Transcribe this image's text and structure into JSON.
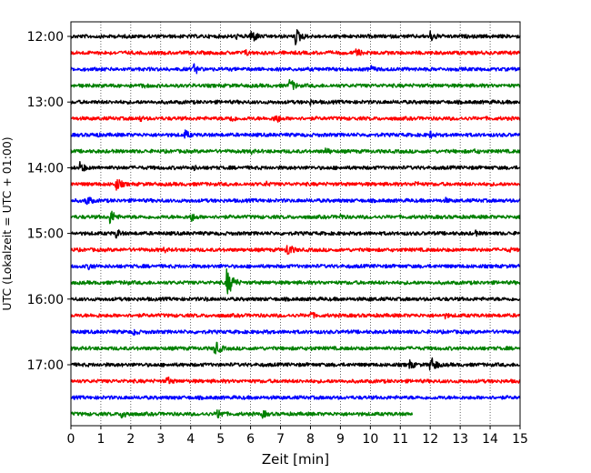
{
  "chart_data": {
    "type": "line",
    "xlabel": "Zeit  [min]",
    "ylabel": "UTC (Lokalzeit = UTC + 01:00)",
    "xlim": [
      0,
      15
    ],
    "x_ticks": [
      "0",
      "1",
      "2",
      "3",
      "4",
      "5",
      "6",
      "7",
      "8",
      "9",
      "10",
      "11",
      "12",
      "13",
      "14",
      "15"
    ],
    "y_ticks": [
      "12:00",
      "13:00",
      "14:00",
      "15:00",
      "16:00",
      "17:00"
    ],
    "grid": "vertical dotted",
    "trace_interval_min": 15,
    "trace_colors": [
      "#000000",
      "#ff0000",
      "#0000ff",
      "#008000"
    ],
    "traces": [
      {
        "start": "12:00",
        "color": "#000000",
        "end_min": 15,
        "events": [
          [
            6.0,
            9
          ],
          [
            7.5,
            10
          ],
          [
            12.0,
            7
          ],
          [
            5.5,
            4
          ]
        ]
      },
      {
        "start": "12:15",
        "color": "#ff0000",
        "end_min": 15,
        "events": [
          [
            5.8,
            5
          ],
          [
            9.5,
            6
          ]
        ]
      },
      {
        "start": "12:30",
        "color": "#0000ff",
        "end_min": 15,
        "events": [
          [
            4.1,
            7
          ],
          [
            10.0,
            5
          ]
        ]
      },
      {
        "start": "12:45",
        "color": "#008000",
        "end_min": 15,
        "events": [
          [
            7.3,
            8
          ],
          [
            2.4,
            4
          ]
        ]
      },
      {
        "start": "13:00",
        "color": "#000000",
        "end_min": 15,
        "events": [
          [
            8.0,
            4
          ],
          [
            14.0,
            3
          ]
        ]
      },
      {
        "start": "13:15",
        "color": "#ff0000",
        "end_min": 15,
        "events": [
          [
            5.3,
            6
          ],
          [
            6.8,
            7
          ],
          [
            2.3,
            4
          ]
        ]
      },
      {
        "start": "13:30",
        "color": "#0000ff",
        "end_min": 15,
        "events": [
          [
            3.8,
            6
          ],
          [
            12.0,
            5
          ],
          [
            0.8,
            4
          ]
        ]
      },
      {
        "start": "13:45",
        "color": "#008000",
        "end_min": 15,
        "events": [
          [
            8.5,
            5
          ],
          [
            13.5,
            4
          ],
          [
            6.0,
            4
          ]
        ]
      },
      {
        "start": "14:00",
        "color": "#000000",
        "end_min": 15,
        "events": [
          [
            0.3,
            7
          ],
          [
            4.1,
            4
          ]
        ]
      },
      {
        "start": "14:15",
        "color": "#ff0000",
        "end_min": 15,
        "events": [
          [
            1.5,
            8
          ],
          [
            6.5,
            4
          ],
          [
            11.5,
            4
          ]
        ]
      },
      {
        "start": "14:30",
        "color": "#0000ff",
        "end_min": 15,
        "events": [
          [
            0.5,
            7
          ],
          [
            12.5,
            4
          ]
        ]
      },
      {
        "start": "14:45",
        "color": "#008000",
        "end_min": 15,
        "events": [
          [
            1.3,
            9
          ],
          [
            4.0,
            6
          ],
          [
            9.0,
            4
          ]
        ]
      },
      {
        "start": "15:00",
        "color": "#000000",
        "end_min": 15,
        "events": [
          [
            1.5,
            6
          ],
          [
            13.5,
            4
          ]
        ]
      },
      {
        "start": "15:15",
        "color": "#ff0000",
        "end_min": 15,
        "events": [
          [
            7.2,
            9
          ],
          [
            3.1,
            4
          ],
          [
            14.6,
            4
          ]
        ]
      },
      {
        "start": "15:30",
        "color": "#0000ff",
        "end_min": 15,
        "events": [
          [
            0.6,
            5
          ],
          [
            5.0,
            3
          ]
        ]
      },
      {
        "start": "15:45",
        "color": "#008000",
        "end_min": 15,
        "events": [
          [
            5.2,
            16
          ],
          [
            1.8,
            4
          ]
        ]
      },
      {
        "start": "16:00",
        "color": "#000000",
        "end_min": 15,
        "events": [
          [
            4.5,
            3
          ],
          [
            10.0,
            3
          ]
        ]
      },
      {
        "start": "16:15",
        "color": "#ff0000",
        "end_min": 15,
        "events": [
          [
            8.0,
            5
          ],
          [
            12.5,
            4
          ],
          [
            0.9,
            3
          ]
        ]
      },
      {
        "start": "16:30",
        "color": "#0000ff",
        "end_min": 15,
        "events": [
          [
            2.1,
            5
          ],
          [
            6.5,
            3
          ]
        ]
      },
      {
        "start": "16:45",
        "color": "#008000",
        "end_min": 15,
        "events": [
          [
            4.8,
            9
          ],
          [
            8.0,
            3
          ]
        ]
      },
      {
        "start": "17:00",
        "color": "#000000",
        "end_min": 15,
        "events": [
          [
            12.0,
            10
          ],
          [
            11.3,
            6
          ]
        ]
      },
      {
        "start": "17:15",
        "color": "#ff0000",
        "end_min": 15,
        "events": [
          [
            3.2,
            6
          ]
        ]
      },
      {
        "start": "17:30",
        "color": "#0000ff",
        "end_min": 15,
        "events": []
      },
      {
        "start": "17:45",
        "color": "#008000",
        "end_min": 11.4,
        "events": [
          [
            1.7,
            7
          ],
          [
            4.9,
            7
          ],
          [
            6.4,
            5
          ]
        ]
      }
    ]
  }
}
